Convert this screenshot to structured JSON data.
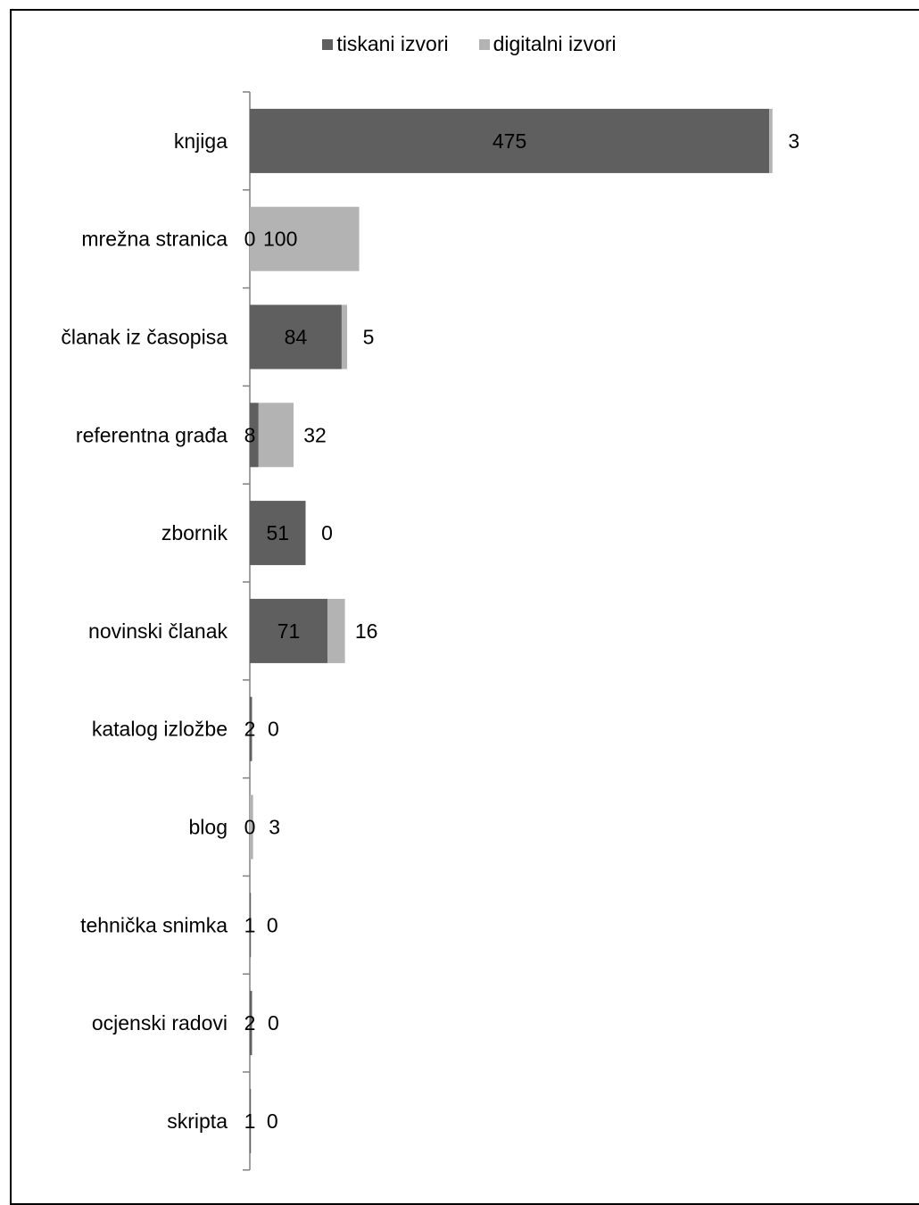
{
  "chart_data": {
    "type": "bar",
    "orientation": "horizontal",
    "stacked": true,
    "categories": [
      "knjiga",
      "mrežna stranica",
      "članak iz časopisa",
      "referentna građa",
      "zbornik",
      "novinski članak",
      "katalog izložbe",
      "blog",
      "tehnička snimka",
      "ocjenski radovi",
      "skripta"
    ],
    "series": [
      {
        "name": "tiskani izvori",
        "values": [
          475,
          0,
          84,
          8,
          51,
          71,
          2,
          0,
          1,
          2,
          1
        ],
        "color": "#5f5f5f"
      },
      {
        "name": "digitalni izvori",
        "values": [
          3,
          100,
          5,
          32,
          0,
          16,
          0,
          3,
          0,
          0,
          0
        ],
        "color": "#b3b3b3"
      }
    ],
    "xlim": [
      0,
      500
    ],
    "title": "",
    "xlabel": "",
    "ylabel": "",
    "legend_position": "top",
    "grid": false
  }
}
